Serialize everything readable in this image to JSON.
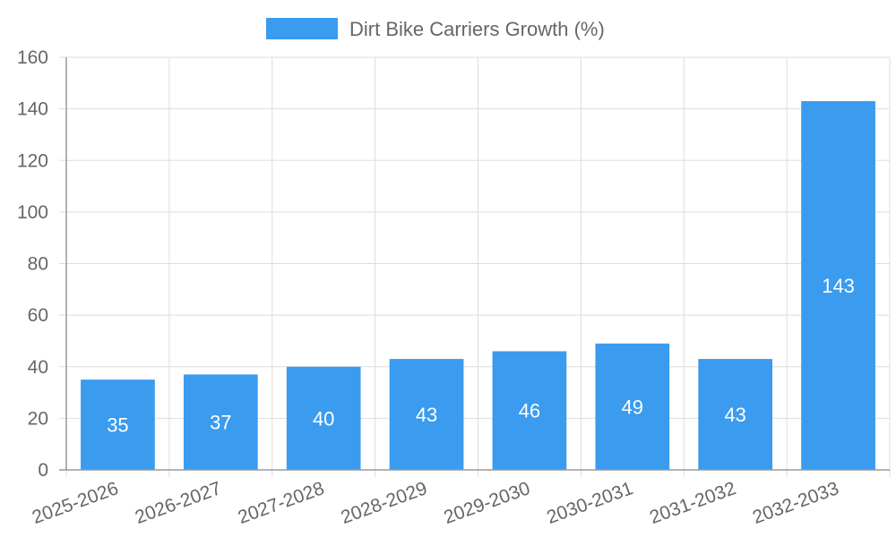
{
  "chart_data": {
    "type": "bar",
    "categories": [
      "2025-2026",
      "2026-2027",
      "2027-2028",
      "2028-2029",
      "2029-2030",
      "2030-2031",
      "2031-2032",
      "2032-2033"
    ],
    "series": [
      {
        "name": "Dirt Bike Carriers Growth (%)",
        "values": [
          35,
          37,
          40,
          43,
          46,
          49,
          43,
          143
        ],
        "color": "#3a9bef"
      }
    ],
    "ylim": [
      0,
      160
    ],
    "yticks": [
      0,
      20,
      40,
      60,
      80,
      100,
      120,
      140,
      160
    ],
    "grid": true,
    "legend_position": "top",
    "data_labels": true
  },
  "colors": {
    "bar": "#3a9bef",
    "grid": "#dddddd",
    "axis": "#999999",
    "text": "#666666",
    "data_label": "#ffffff"
  }
}
